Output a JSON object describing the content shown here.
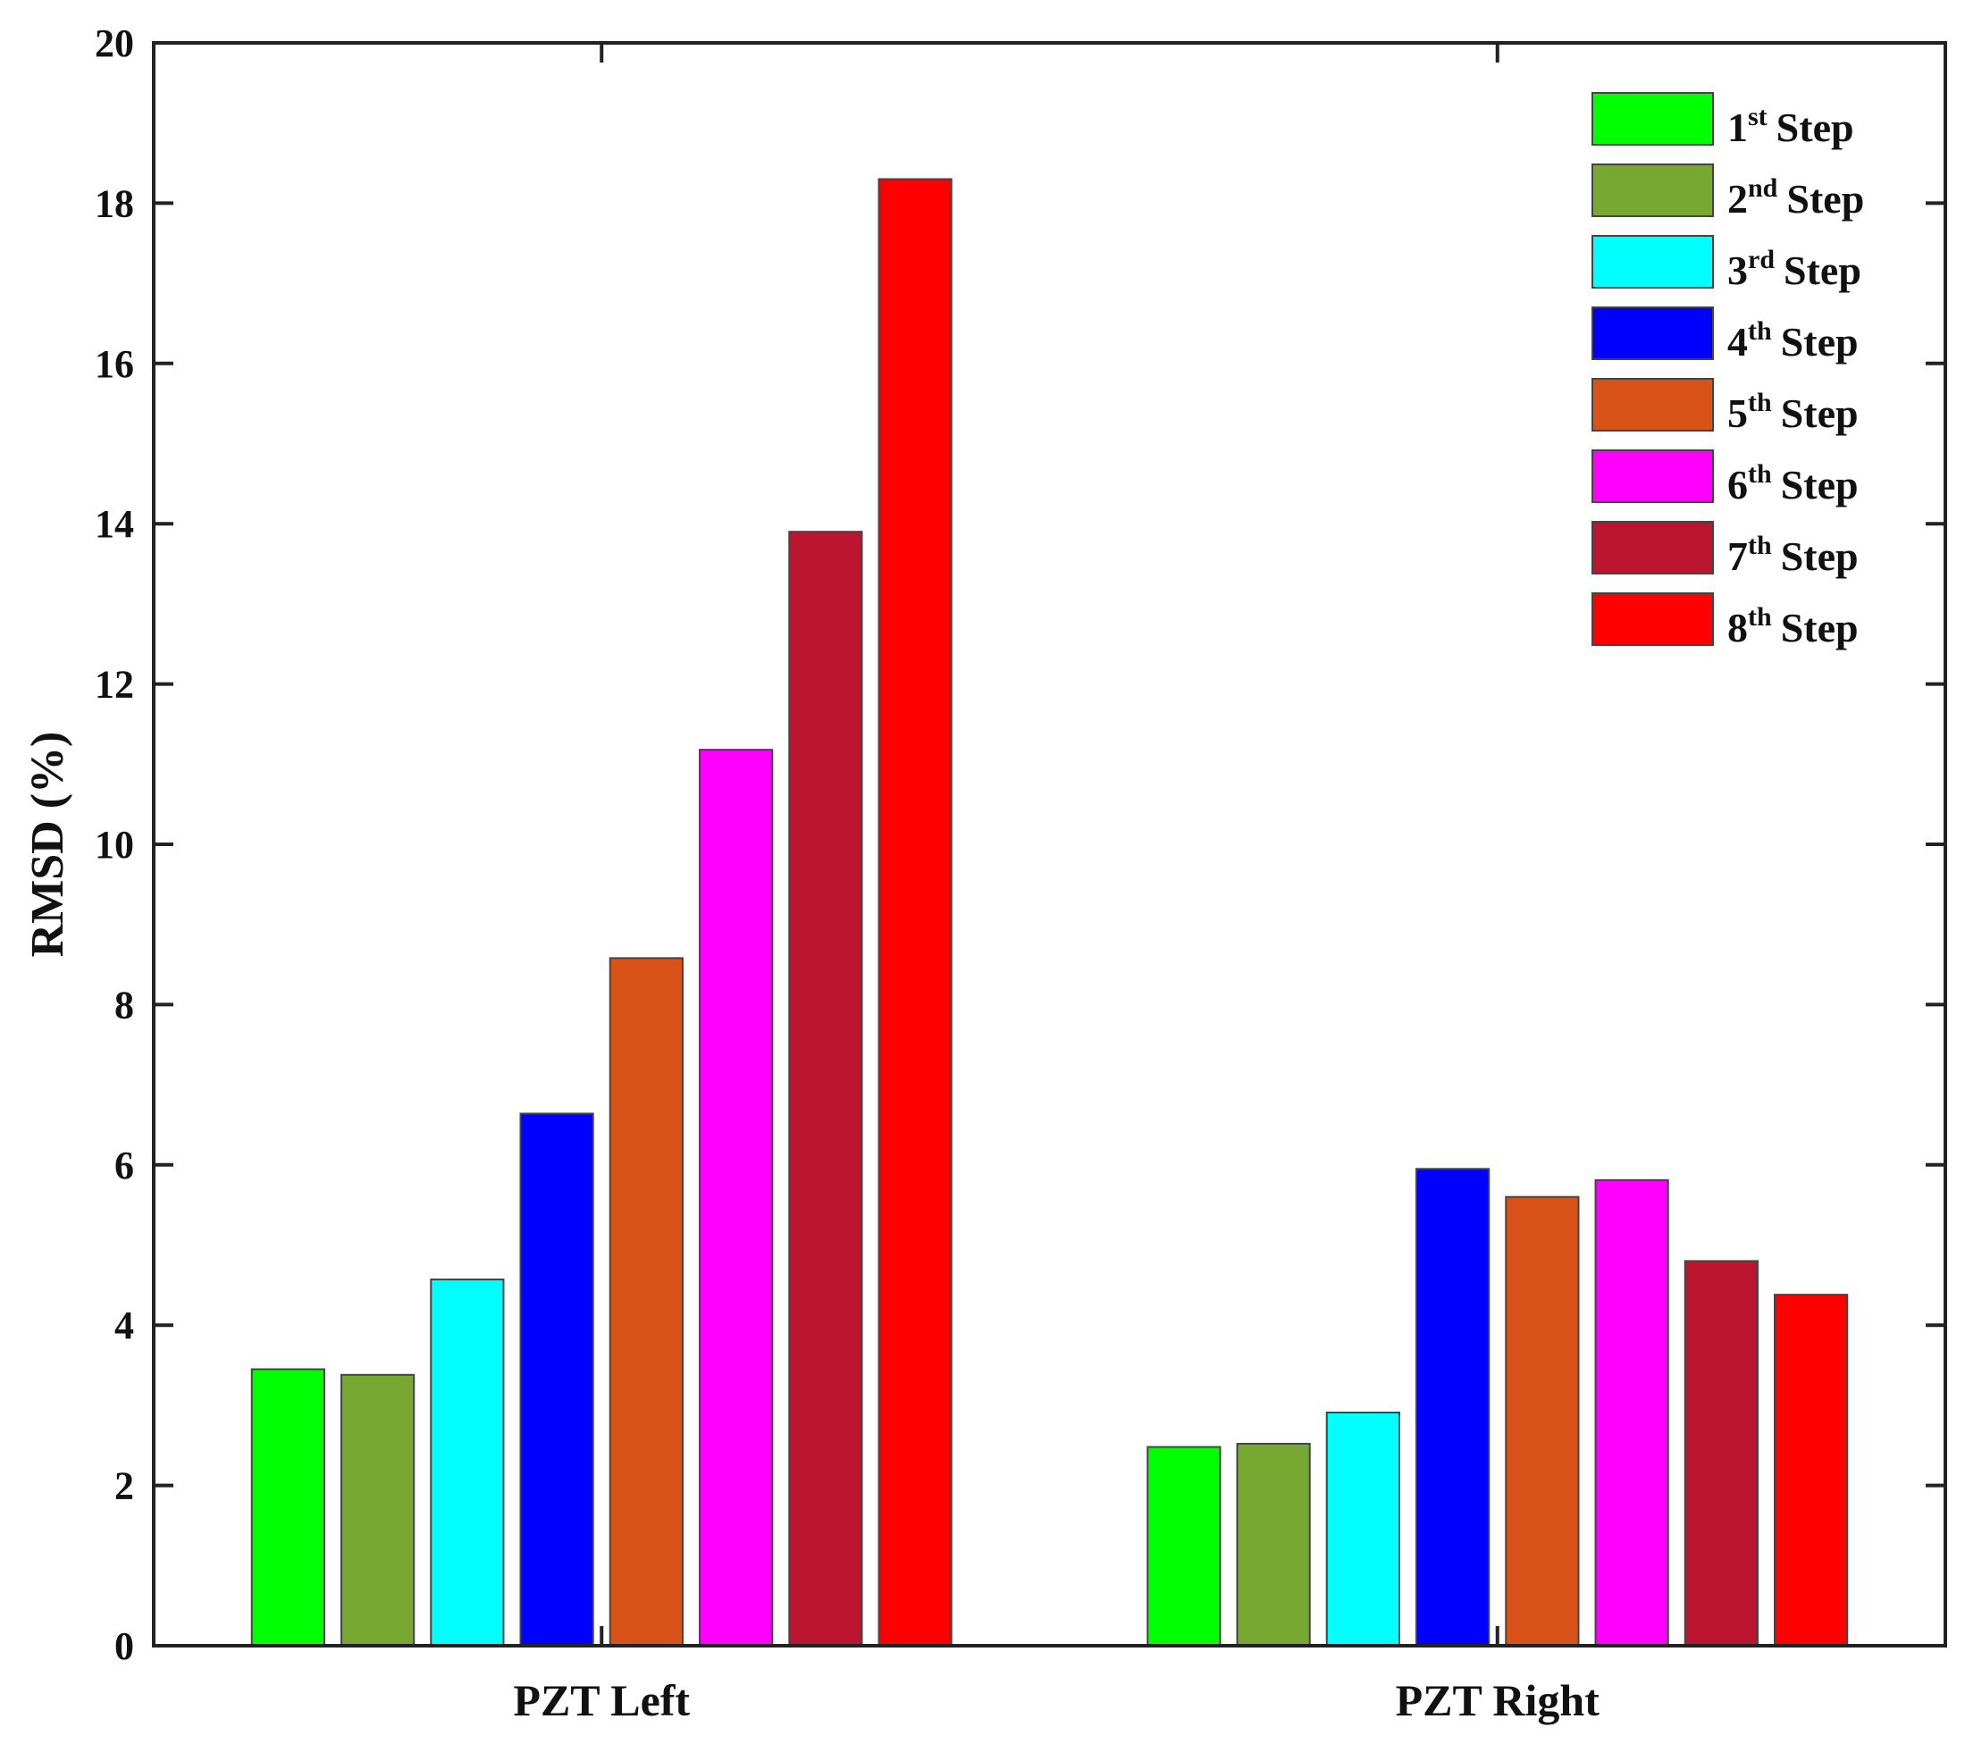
{
  "chart_data": {
    "type": "bar",
    "title": "",
    "xlabel": "",
    "ylabel": "RMSD (%)",
    "ylim": [
      0,
      20
    ],
    "yticks": [
      0,
      2,
      4,
      6,
      8,
      10,
      12,
      14,
      16,
      18,
      20
    ],
    "grid": false,
    "legend_position": "top-right",
    "categories": [
      "PZT Left",
      "PZT Right"
    ],
    "series": [
      {
        "name": "1st Step",
        "num": "1",
        "sup": "st",
        "word": "Step",
        "color": "#00ff00",
        "values": [
          3.45,
          2.48
        ]
      },
      {
        "name": "2nd Step",
        "num": "2",
        "sup": "nd",
        "word": "Step",
        "color": "#77a832",
        "values": [
          3.38,
          2.52
        ]
      },
      {
        "name": "3rd Step",
        "num": "3",
        "sup": "rd",
        "word": "Step",
        "color": "#00ffff",
        "values": [
          4.57,
          2.91
        ]
      },
      {
        "name": "4th Step",
        "num": "4",
        "sup": "th",
        "word": "Step",
        "color": "#0000ff",
        "values": [
          6.64,
          5.95
        ]
      },
      {
        "name": "5th Step",
        "num": "5",
        "sup": "th",
        "word": "Step",
        "color": "#d95319",
        "values": [
          8.58,
          5.6
        ]
      },
      {
        "name": "6th Step",
        "num": "6",
        "sup": "th",
        "word": "Step",
        "color": "#ff00ff",
        "values": [
          11.18,
          5.81
        ]
      },
      {
        "name": "7th Step",
        "num": "7",
        "sup": "th",
        "word": "Step",
        "color": "#bc1530",
        "values": [
          13.9,
          4.8
        ]
      },
      {
        "name": "8th Step",
        "num": "8",
        "sup": "th",
        "word": "Step",
        "color": "#ff0000",
        "values": [
          18.3,
          4.38
        ]
      }
    ]
  }
}
